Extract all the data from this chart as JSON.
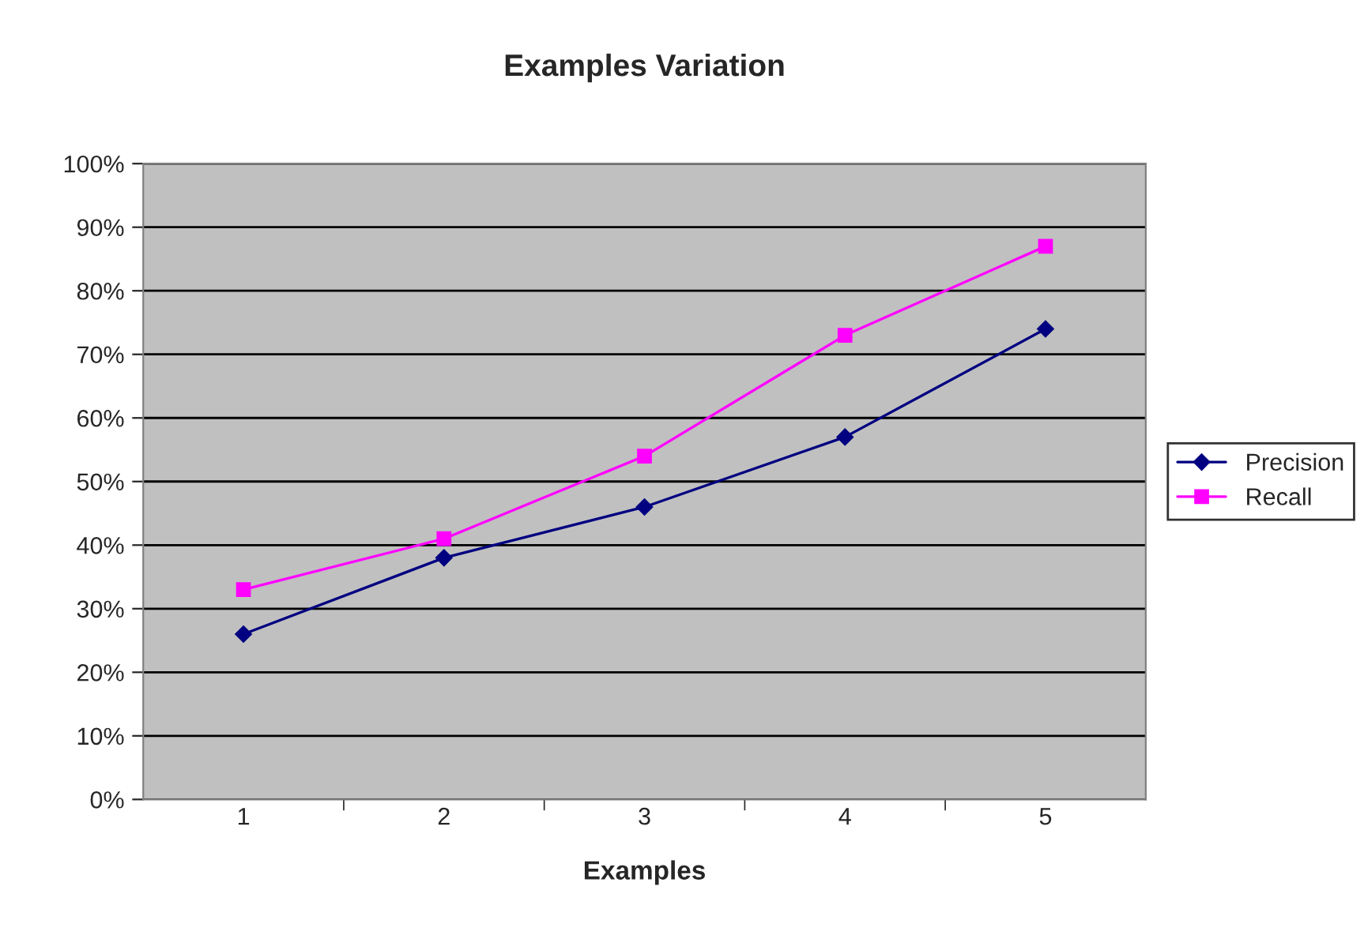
{
  "chart_data": {
    "type": "line",
    "title": "Examples Variation",
    "xlabel": "Examples",
    "categories": [
      "1",
      "2",
      "3",
      "4",
      "5"
    ],
    "series": [
      {
        "name": "Precision",
        "color": "#000080",
        "marker": "diamond",
        "values": [
          26,
          38,
          46,
          57,
          74
        ]
      },
      {
        "name": "Recall",
        "color": "#ff00ff",
        "marker": "square",
        "values": [
          33,
          41,
          54,
          73,
          87
        ]
      }
    ],
    "ylim": [
      0,
      100
    ],
    "yticks": [
      {
        "value": 0,
        "label": "0%"
      },
      {
        "value": 10,
        "label": "10%"
      },
      {
        "value": 20,
        "label": "20%"
      },
      {
        "value": 30,
        "label": "30%"
      },
      {
        "value": 40,
        "label": "40%"
      },
      {
        "value": 50,
        "label": "50%"
      },
      {
        "value": 60,
        "label": "60%"
      },
      {
        "value": 70,
        "label": "70%"
      },
      {
        "value": 80,
        "label": "80%"
      },
      {
        "value": 90,
        "label": "90%"
      },
      {
        "value": 100,
        "label": "100%"
      }
    ],
    "grid": "y",
    "legend": "right",
    "line_style": "solid"
  }
}
